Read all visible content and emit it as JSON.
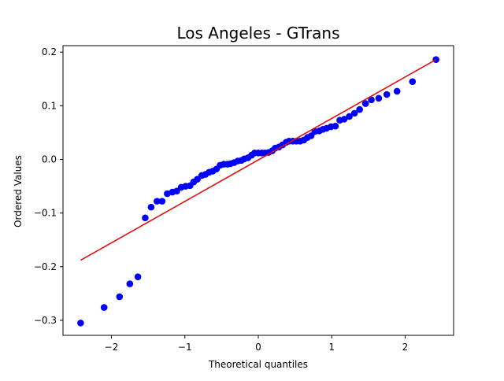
{
  "chart_data": {
    "type": "scatter",
    "title": "Los Angeles - GTrans",
    "xlabel": "Theoretical quantiles",
    "ylabel": "Ordered Values",
    "xlim": [
      -2.66,
      2.66
    ],
    "ylim": [
      -0.328,
      0.212
    ],
    "xticks": [
      -2,
      -1,
      0,
      1,
      2
    ],
    "xtick_labels": [
      "−2",
      "−1",
      "0",
      "1",
      "2"
    ],
    "yticks": [
      -0.3,
      -0.2,
      -0.1,
      0.0,
      0.1,
      0.2
    ],
    "ytick_labels": [
      "−0.3",
      "−0.2",
      "−0.1",
      "0.0",
      "0.1",
      "0.2"
    ],
    "grid": false,
    "colors": {
      "points": "#0000ff",
      "fit_line": "#dd1111"
    },
    "series": [
      {
        "kind": "points",
        "x": [
          -2.42,
          -2.1,
          -1.89,
          -1.75,
          -1.64,
          -1.54,
          -1.46,
          -1.38,
          -1.31,
          -1.24,
          -1.17,
          -1.11,
          -1.05,
          -0.99,
          -0.93,
          -0.88,
          -0.83,
          -0.77,
          -0.72,
          -0.67,
          -0.62,
          -0.57,
          -0.52,
          -0.47,
          -0.42,
          -0.38,
          -0.33,
          -0.28,
          -0.23,
          -0.19,
          -0.14,
          -0.09,
          -0.05,
          0.0,
          0.05,
          0.09,
          0.14,
          0.19,
          0.23,
          0.28,
          0.33,
          0.38,
          0.42,
          0.47,
          0.52,
          0.57,
          0.62,
          0.67,
          0.72,
          0.77,
          0.83,
          0.88,
          0.93,
          0.99,
          1.05,
          1.11,
          1.17,
          1.24,
          1.31,
          1.38,
          1.46,
          1.54,
          1.64,
          1.75,
          1.89,
          2.1,
          2.42
        ],
        "y": [
          -0.305,
          -0.276,
          -0.256,
          -0.232,
          -0.219,
          -0.109,
          -0.089,
          -0.078,
          -0.078,
          -0.064,
          -0.061,
          -0.059,
          -0.052,
          -0.05,
          -0.049,
          -0.042,
          -0.037,
          -0.03,
          -0.028,
          -0.024,
          -0.022,
          -0.018,
          -0.011,
          -0.009,
          -0.009,
          -0.008,
          -0.006,
          -0.003,
          -0.002,
          0.001,
          0.003,
          0.008,
          0.012,
          0.012,
          0.012,
          0.012,
          0.013,
          0.016,
          0.021,
          0.023,
          0.027,
          0.032,
          0.034,
          0.034,
          0.034,
          0.034,
          0.036,
          0.041,
          0.044,
          0.052,
          0.053,
          0.056,
          0.058,
          0.061,
          0.062,
          0.073,
          0.075,
          0.08,
          0.086,
          0.093,
          0.104,
          0.111,
          0.114,
          0.121,
          0.127,
          0.145,
          0.186
        ]
      },
      {
        "kind": "fit_line",
        "x": [
          -2.42,
          2.42
        ],
        "y": [
          -0.188,
          0.186
        ]
      }
    ]
  }
}
